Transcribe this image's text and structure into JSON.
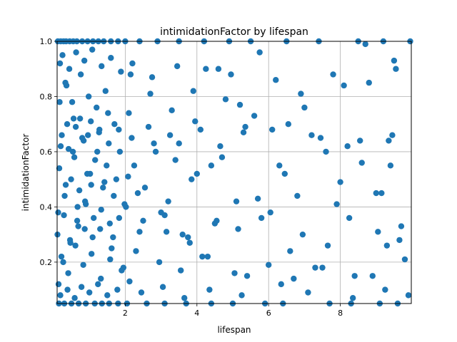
{
  "chart_data": {
    "type": "scatter",
    "title": "intimidationFactor by lifespan",
    "xlabel": "lifespan",
    "ylabel": "intimidationFactor",
    "xlim": [
      0.1,
      9.98
    ],
    "ylim": [
      0.05,
      1.0
    ],
    "x_ticks": [
      2,
      4,
      6,
      8
    ],
    "y_ticks": [
      0.2,
      0.4,
      0.6,
      0.8,
      1.0
    ],
    "x_tick_labels": [
      "2",
      "4",
      "6",
      "8"
    ],
    "y_tick_labels": [
      "0.2",
      "0.4",
      "0.6",
      "0.8",
      "1.0"
    ],
    "grid": true,
    "marker_color": "#1f77b4",
    "series": [
      {
        "x": [
          0.12,
          0.2,
          0.28,
          0.35,
          0.45,
          0.55,
          0.65,
          0.8,
          0.95,
          1.1,
          1.25,
          1.4,
          1.6,
          1.8,
          2.0,
          2.4,
          2.9,
          3.5,
          4.2,
          4.9,
          5.5,
          6.5,
          7.4,
          8.5,
          9.2,
          9.95,
          0.15,
          0.3,
          0.5,
          0.7,
          0.9,
          1.15,
          1.35,
          1.55,
          1.8,
          2.05,
          2.6,
          3.1,
          3.7,
          4.4,
          5.0,
          5.9,
          6.4,
          7.7,
          8.3,
          9.1,
          9.6,
          0.18,
          0.33,
          0.52,
          0.74,
          0.96,
          1.22,
          1.48,
          1.75,
          2.15,
          2.7,
          3.3,
          3.9,
          4.6,
          5.2,
          6.2,
          7.0,
          8.1,
          8.8,
          9.5,
          0.14,
          0.27,
          0.46,
          0.66,
          0.88,
          1.05,
          1.3,
          1.62,
          1.95,
          2.35,
          3.0,
          3.6,
          4.3,
          5.4,
          6.6,
          7.3,
          8.4,
          9.3,
          0.2,
          0.38,
          0.58,
          0.8,
          1.02,
          1.28,
          1.52,
          1.85,
          2.25,
          2.8,
          3.4,
          4.0,
          4.7,
          5.3,
          6.3,
          7.6,
          8.2,
          9.4,
          0.13,
          0.31,
          0.49,
          0.69,
          0.9,
          1.12,
          1.38,
          1.66,
          2.02,
          2.5,
          3.15,
          3.8,
          4.5,
          5.1,
          5.8,
          6.8,
          7.9,
          9.0,
          9.7,
          0.17,
          0.36,
          0.56,
          0.76,
          0.98,
          1.2,
          1.45,
          1.7,
          2.1,
          2.65,
          3.25,
          3.95,
          4.8,
          5.6,
          6.1,
          7.2,
          8.6,
          9.35,
          0.22,
          0.41,
          0.61,
          0.83,
          1.06,
          1.32,
          1.58,
          1.9,
          2.3,
          2.95,
          3.55,
          4.15,
          5.05,
          6.0,
          6.7,
          7.5,
          8.9,
          9.8,
          0.16,
          0.34,
          0.54,
          0.72,
          0.94,
          1.16,
          1.42,
          1.68,
          2.08,
          2.55,
          3.2,
          3.85,
          4.4,
          5.7,
          6.45,
          8.0,
          9.15,
          0.25,
          0.44,
          0.63,
          0.86,
          1.08,
          1.34,
          1.6,
          1.88,
          2.2,
          2.75,
          3.45,
          4.25,
          4.95,
          5.75,
          6.9,
          7.8,
          8.7,
          9.55,
          0.19,
          0.39,
          0.59,
          0.78,
          1.0,
          1.24,
          1.5,
          1.78,
          2.12,
          2.45,
          3.05,
          3.65,
          4.35,
          5.25,
          6.35,
          7.1,
          8.35,
          9.25,
          9.9,
          0.23,
          0.42,
          0.62,
          0.84,
          1.04,
          1.27,
          1.54,
          1.82,
          2.18,
          2.85,
          3.5,
          4.1,
          4.65,
          5.35,
          6.55,
          7.45,
          8.55,
          9.45,
          0.11,
          0.29,
          0.47,
          0.67,
          0.87,
          1.09,
          1.33,
          1.57,
          1.83,
          1.98,
          2.4,
          3.1,
          3.75,
          4.55,
          5.15,
          6.05,
          6.95,
          7.65,
          8.25,
          9.05,
          9.65
        ],
        "y": [
          1.0,
          1.0,
          1.0,
          1.0,
          1.0,
          1.0,
          1.0,
          1.0,
          1.0,
          1.0,
          1.0,
          1.0,
          1.0,
          1.0,
          1.0,
          1.0,
          1.0,
          1.0,
          1.0,
          1.0,
          1.0,
          1.0,
          1.0,
          1.0,
          1.0,
          1.0,
          0.05,
          0.05,
          0.05,
          0.05,
          0.05,
          0.05,
          0.05,
          0.05,
          0.05,
          0.05,
          0.05,
          0.05,
          0.05,
          0.05,
          0.05,
          0.05,
          0.05,
          0.05,
          0.05,
          0.05,
          0.05,
          0.92,
          0.85,
          0.78,
          0.72,
          0.66,
          0.6,
          0.55,
          0.5,
          0.88,
          0.81,
          0.75,
          0.82,
          0.9,
          0.77,
          0.86,
          0.76,
          0.84,
          0.85,
          0.93,
          0.12,
          0.2,
          0.28,
          0.35,
          0.42,
          0.48,
          0.32,
          0.25,
          0.18,
          0.45,
          0.38,
          0.3,
          0.22,
          0.15,
          0.24,
          0.18,
          0.15,
          0.26,
          0.62,
          0.7,
          0.58,
          0.65,
          0.52,
          0.68,
          0.74,
          0.6,
          0.55,
          0.63,
          0.57,
          0.52,
          0.58,
          0.67,
          0.55,
          0.6,
          0.62,
          0.55,
          0.38,
          0.44,
          0.5,
          0.33,
          0.41,
          0.36,
          0.47,
          0.29,
          0.4,
          0.35,
          0.31,
          0.27,
          0.34,
          0.42,
          0.36,
          0.44,
          0.41,
          0.45,
          0.33,
          0.78,
          0.84,
          0.72,
          0.88,
          0.8,
          0.76,
          0.82,
          0.7,
          0.74,
          0.69,
          0.66,
          0.71,
          0.79,
          0.73,
          0.68,
          0.66,
          0.56,
          0.64,
          0.22,
          0.16,
          0.26,
          0.19,
          0.23,
          0.14,
          0.21,
          0.17,
          0.24,
          0.2,
          0.17,
          0.22,
          0.16,
          0.19,
          0.14,
          0.18,
          0.15,
          0.21,
          0.54,
          0.48,
          0.6,
          0.46,
          0.52,
          0.57,
          0.49,
          0.44,
          0.51,
          0.47,
          0.42,
          0.5,
          0.55,
          0.43,
          0.52,
          0.49,
          0.45,
          0.95,
          0.9,
          0.96,
          0.93,
          0.97,
          0.91,
          0.94,
          0.89,
          0.92,
          0.87,
          0.91,
          0.9,
          0.88,
          0.96,
          0.81,
          0.88,
          0.99,
          0.9,
          0.08,
          0.1,
          0.07,
          0.11,
          0.09,
          0.12,
          0.08,
          0.1,
          0.13,
          0.09,
          0.11,
          0.07,
          0.1,
          0.08,
          0.12,
          0.09,
          0.07,
          0.1,
          0.08,
          0.66,
          0.61,
          0.69,
          0.64,
          0.71,
          0.67,
          0.63,
          0.68,
          0.65,
          0.6,
          0.63,
          0.68,
          0.62,
          0.69,
          0.7,
          0.65,
          0.64,
          0.66,
          0.3,
          0.37,
          0.27,
          0.4,
          0.32,
          0.29,
          0.39,
          0.34,
          0.36,
          0.41,
          0.31,
          0.37,
          0.29,
          0.35,
          0.32,
          0.38,
          0.3,
          0.26,
          0.36,
          0.31,
          0.28
        ]
      }
    ]
  }
}
